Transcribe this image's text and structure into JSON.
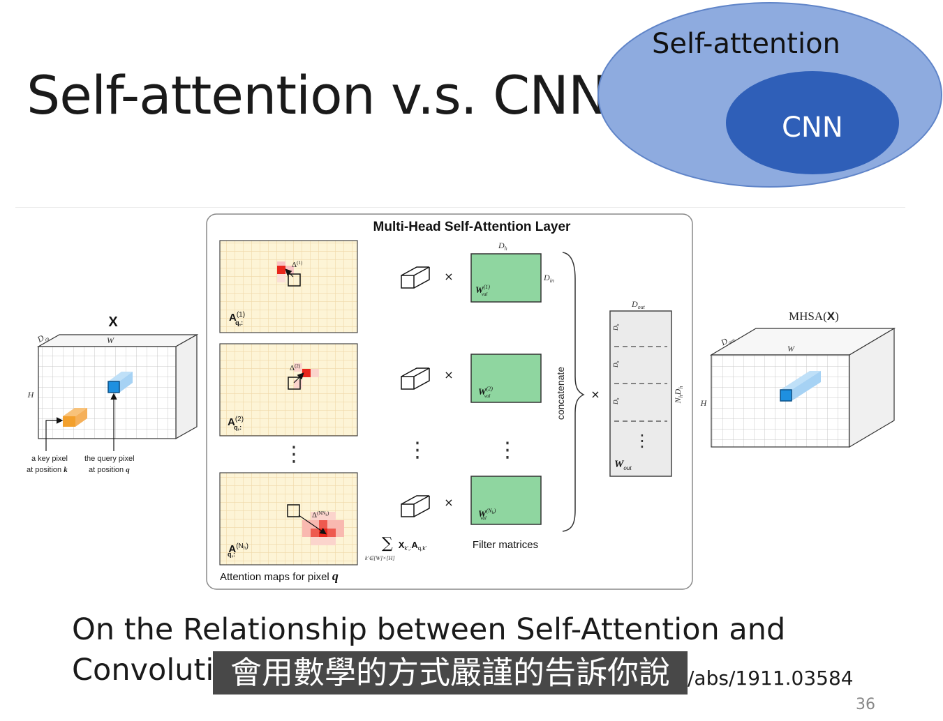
{
  "slide": {
    "title": "Self-attention v.s. CNN",
    "page_number": "36"
  },
  "venn": {
    "outer_label": "Self-attention",
    "inner_label": "CNN",
    "outer_color": "#8aa8de",
    "inner_color": "#2e5cb8"
  },
  "figure": {
    "panel_title": "Multi-Head Self-Attention Layer",
    "input_label": "X",
    "input_dim_d": "D",
    "input_dim_d_sub": "in",
    "input_dim_w": "W",
    "input_dim_h": "H",
    "key_pixel_line1": "a key pixel",
    "key_pixel_line2": "at position",
    "key_pixel_var": "k",
    "query_pixel_line1": "the query pixel",
    "query_pixel_line2": "at position",
    "query_pixel_var": "q",
    "attention_maps": [
      {
        "label": "A",
        "sup": "(1)",
        "sub": "q,:",
        "delta": "Δ",
        "delta_sup": "(1)"
      },
      {
        "label": "A",
        "sup": "(2)",
        "sub": "q,:",
        "delta": "Δ",
        "delta_sup": "(2)"
      },
      {
        "label": "A",
        "sup": "(N",
        "sup_sub": "h",
        "sub": "q,:",
        "delta": "Δ",
        "delta_sup": "(N"
      }
    ],
    "attention_maps_caption": "Attention maps for pixel",
    "attention_maps_caption_var": "q",
    "times": "×",
    "dots_vertical": "⋮",
    "sum_symbol": "∑",
    "sum_term": "X",
    "sum_term_sub": "k′,:",
    "sum_term2": "A",
    "sum_term2_sub": "q,k′",
    "sum_subscript": "k′∈[W]×[H]",
    "filter_dim_top": "D",
    "filter_dim_top_sub": "h",
    "filter_dim_right": "D",
    "filter_dim_right_sub": "in",
    "filters": [
      {
        "label": "W",
        "sup": "(1)",
        "sub": "val"
      },
      {
        "label": "W",
        "sup": "(2)",
        "sub": "val"
      },
      {
        "label": "W",
        "sup": "(N",
        "sup_sub": "h",
        "sub": "val"
      }
    ],
    "filter_caption": "Filter matrices",
    "concatenate_label": "concatenate",
    "wout_dim_top": "D",
    "wout_dim_top_sub": "out",
    "wout_block_label": "D",
    "wout_block_sub": "h",
    "wout_side_label": "N",
    "wout_side_sub": "h",
    "wout_side_label2": "D",
    "wout_side_sub2": "h",
    "wout_label": "W",
    "wout_label_sub": "out",
    "output_label": "MHSA(",
    "output_label_x": "X",
    "output_label_close": ")",
    "output_dim_d": "D",
    "output_dim_d_sub": "out",
    "output_dim_w": "W",
    "output_dim_h": "H",
    "colors": {
      "attention_bg": "#fdf3d2",
      "attention_grid": "#f2dcb0",
      "highlight": "#e8261c",
      "filter_green": "#8fd6a0",
      "query_blue": "#1e90e0",
      "key_orange": "#f3a02c"
    }
  },
  "reference": {
    "line1": "On the Relationship between Self-Attention and",
    "line2": "Convoluti",
    "url_tail": "/abs/1911.03584"
  },
  "subtitle": {
    "text": "會用數學的方式嚴謹的告訴你說"
  }
}
